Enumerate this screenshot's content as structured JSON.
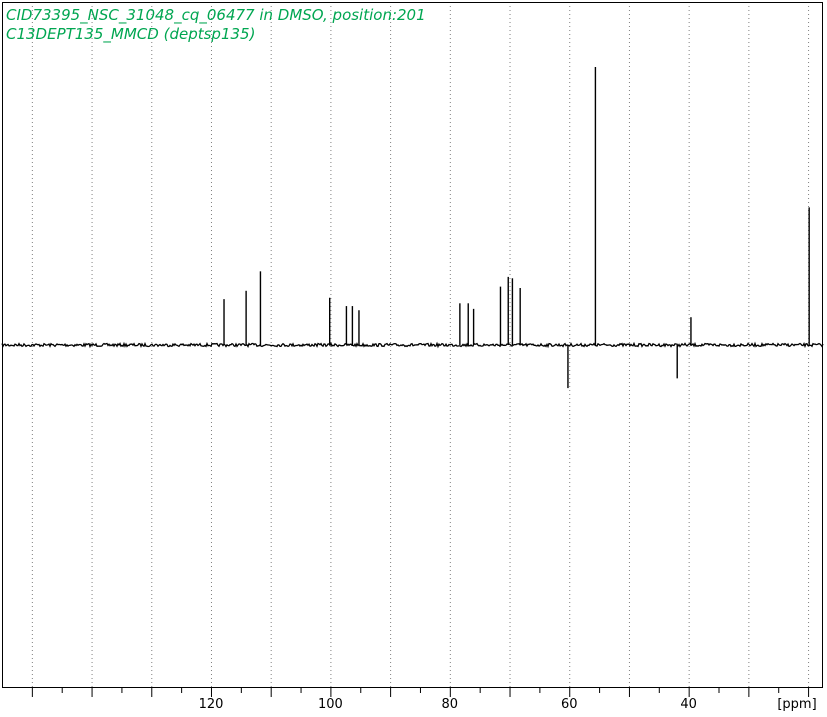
{
  "title_line_1": "CID73395_NSC_31048_cq_06477 in DMSO, position:201",
  "title_line_2": "C13DEPT135_MMCD (deptsp135)",
  "colors": {
    "title": "#00a651",
    "spectrum": "#000000",
    "grid": "#808080"
  },
  "chart_data": {
    "type": "line",
    "title": "CID73395_NSC_31048_cq_06477 in DMSO, position:201",
    "subtitle": "C13DEPT135_MMCD (deptsp135)",
    "xlabel": "[ppm]",
    "x_reversed": true,
    "xlim": [
      155.0,
      17.5
    ],
    "ylim": [
      -1.0,
      1.0
    ],
    "major_ticks": [
      120,
      100,
      80,
      60,
      40
    ],
    "grid": "vertical dotted",
    "series": [
      {
        "peaks": [
          {
            "ppm": 117.9,
            "intensity": 0.165
          },
          {
            "ppm": 114.2,
            "intensity": 0.195
          },
          {
            "ppm": 111.8,
            "intensity": 0.265
          },
          {
            "ppm": 100.2,
            "intensity": 0.17
          },
          {
            "ppm": 97.4,
            "intensity": 0.14
          },
          {
            "ppm": 96.4,
            "intensity": 0.14
          },
          {
            "ppm": 95.3,
            "intensity": 0.125
          },
          {
            "ppm": 78.4,
            "intensity": 0.15
          },
          {
            "ppm": 77.0,
            "intensity": 0.15
          },
          {
            "ppm": 76.1,
            "intensity": 0.13
          },
          {
            "ppm": 71.6,
            "intensity": 0.21
          },
          {
            "ppm": 70.3,
            "intensity": 0.245
          },
          {
            "ppm": 69.6,
            "intensity": 0.24
          },
          {
            "ppm": 68.3,
            "intensity": 0.205
          },
          {
            "ppm": 60.3,
            "intensity": -0.155
          },
          {
            "ppm": 55.7,
            "intensity": 1.0
          },
          {
            "ppm": 42.0,
            "intensity": -0.12
          },
          {
            "ppm": 39.7,
            "intensity": 0.1
          },
          {
            "ppm": 19.9,
            "intensity": 0.495
          }
        ]
      }
    ]
  }
}
